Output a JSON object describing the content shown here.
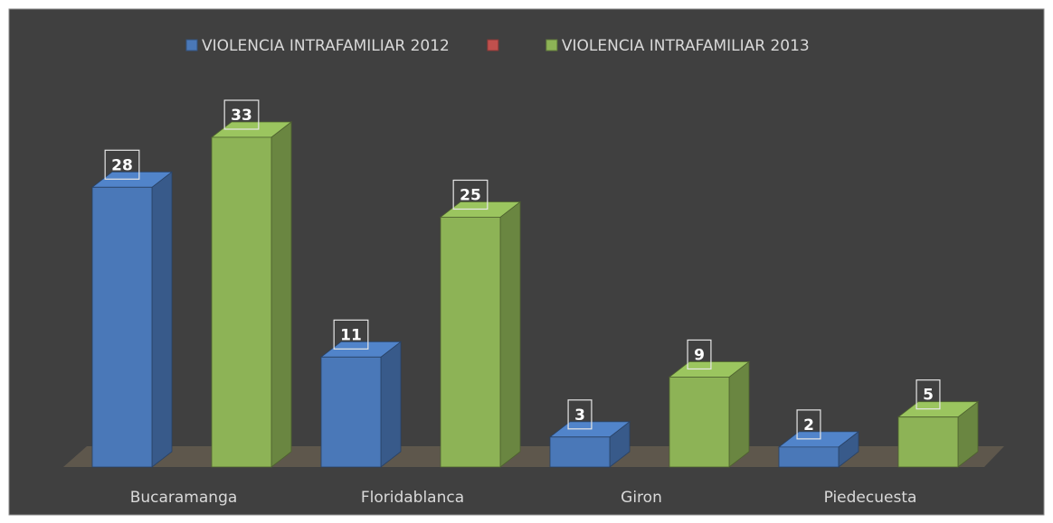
{
  "chart_data": {
    "type": "bar3d",
    "categories": [
      "Bucaramanga",
      "Floridablanca",
      "Giron",
      "Piedecuesta"
    ],
    "series": [
      {
        "name": "VIOLENCIA INTRAFAMILIAR 2012",
        "color": "#4a78b8",
        "values": [
          28,
          11,
          3,
          2
        ]
      },
      {
        "name": null,
        "color": "#c0504d",
        "values": [
          null,
          null,
          null,
          null
        ]
      },
      {
        "name": "VIOLENCIA INTRAFAMILIAR 2013",
        "color": "#8db356",
        "values": [
          33,
          25,
          9,
          5
        ]
      }
    ],
    "legend": "top"
  }
}
